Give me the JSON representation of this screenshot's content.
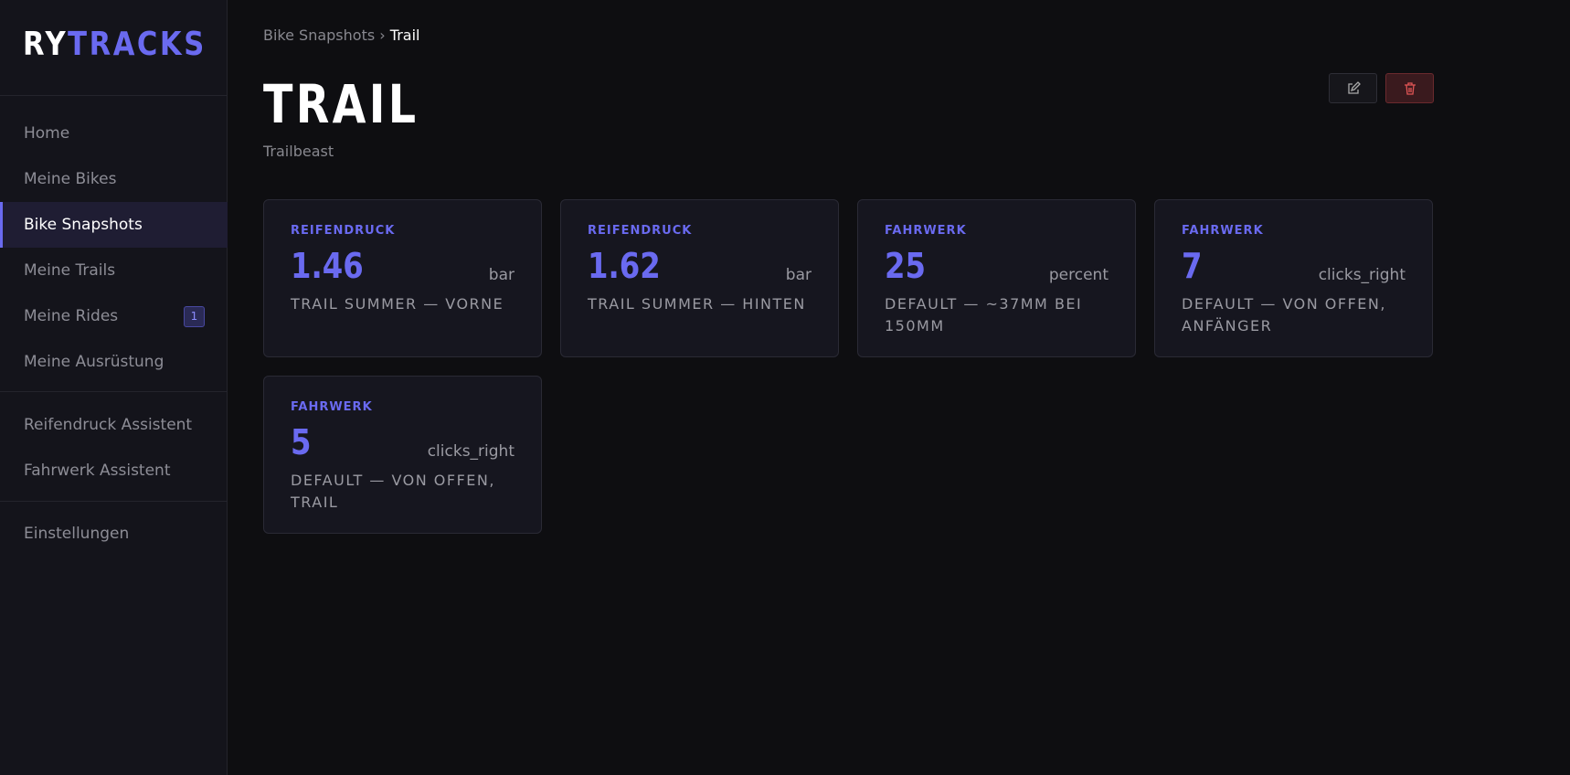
{
  "logo": {
    "part1": "RY",
    "part2": "TRACKS"
  },
  "nav": {
    "group1": [
      {
        "label": "Home"
      },
      {
        "label": "Meine Bikes"
      },
      {
        "label": "Bike Snapshots",
        "active": true
      },
      {
        "label": "Meine Trails"
      },
      {
        "label": "Meine Rides",
        "badge": 1
      },
      {
        "label": "Meine Ausrüstung"
      }
    ],
    "group2": [
      {
        "label": "Reifendruck Assistent"
      },
      {
        "label": "Fahrwerk Assistent"
      }
    ],
    "group3": [
      {
        "label": "Einstellungen"
      }
    ]
  },
  "breadcrumb": {
    "parent": "Bike Snapshots",
    "separator": "›",
    "current": "Trail"
  },
  "header": {
    "title": "TRAIL",
    "subtitle": "Trailbeast"
  },
  "cards": [
    {
      "category": "REIFENDRUCK",
      "value": 1.46,
      "unit": "bar",
      "description": "TRAIL SUMMER — VORNE"
    },
    {
      "category": "REIFENDRUCK",
      "value": 1.62,
      "unit": "bar",
      "description": "TRAIL SUMMER — HINTEN"
    },
    {
      "category": "FAHRWERK",
      "value": 25,
      "unit": "percent",
      "description": "DEFAULT — ~37MM BEI 150MM"
    },
    {
      "category": "FAHRWERK",
      "value": 7,
      "unit": "clicks_right",
      "description": "DEFAULT — VON OFFEN, ANFÄNGER"
    },
    {
      "category": "FAHRWERK",
      "value": 5,
      "unit": "clicks_right",
      "description": "DEFAULT — VON OFFEN, TRAIL"
    }
  ]
}
